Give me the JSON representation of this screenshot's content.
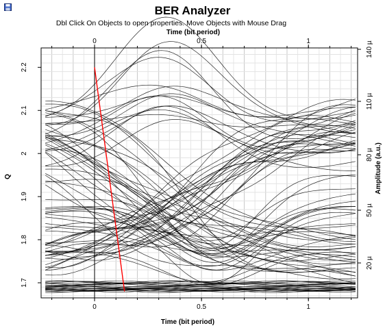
{
  "window": {
    "title": "BER Analyzer",
    "hint": "Dbl Click On Objects to open properties.  Move Objects with Mouse Drag",
    "icon": "floppy-disk-icon"
  },
  "chart_data": {
    "type": "line",
    "x_top_label": "Time (bit period)",
    "x_bottom_label": "Time (bit period)",
    "y_left_label": "Q",
    "y_right_label": "Amplitude (a.u.)",
    "x_range": [
      -0.25,
      1.23
    ],
    "x_ticks": [
      0,
      0.5,
      1
    ],
    "x_tick_labels": [
      "0",
      "0.5",
      "1"
    ],
    "y_left_range": [
      1.665,
      2.245
    ],
    "y_left_ticks": [
      1.7,
      1.8,
      1.9,
      2.0,
      2.1,
      2.2
    ],
    "y_left_tick_labels": [
      "1.7",
      "1.8",
      "1.9",
      "2",
      "2.1",
      "2.2"
    ],
    "y_right_ticks": [
      20,
      50,
      80,
      110,
      140
    ],
    "y_right_tick_labels": [
      "20 µ",
      "50 µ",
      "80 µ",
      "110 µ",
      "140 µ"
    ],
    "grid": true,
    "q_curve": {
      "color": "#ff0000",
      "points": [
        [
          0.0,
          2.2
        ],
        [
          0.14,
          1.68
        ]
      ]
    },
    "eye": {
      "color": "#000000",
      "high_level": 2.08,
      "low_level": 1.685,
      "crossing_times": [
        0,
        1
      ]
    }
  }
}
